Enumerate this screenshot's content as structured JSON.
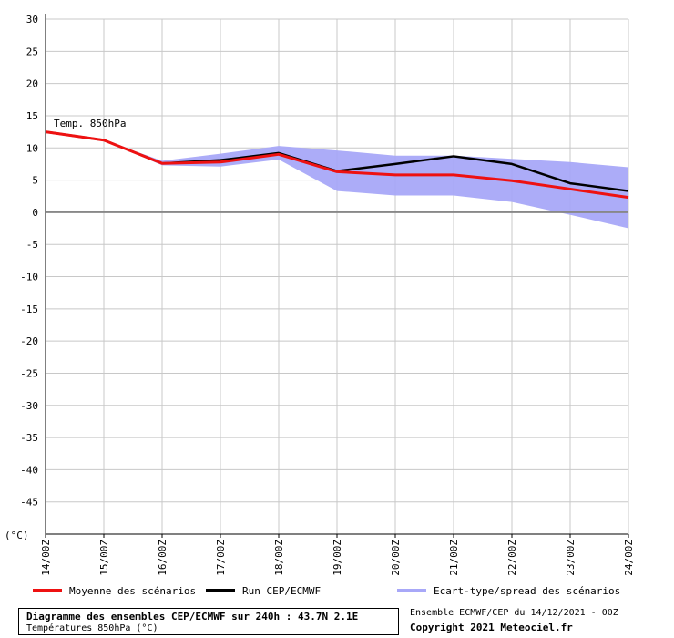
{
  "chart_data": {
    "type": "line",
    "ylabel": "(°C)",
    "ylim": [
      -50,
      30
    ],
    "yticks": [
      30,
      25,
      20,
      15,
      10,
      5,
      0,
      -5,
      -10,
      -15,
      -20,
      -25,
      -30,
      -35,
      -40,
      -45
    ],
    "grid": true,
    "x": [
      "14/00Z",
      "15/00Z",
      "16/00Z",
      "17/00Z",
      "18/00Z",
      "19/00Z",
      "20/00Z",
      "21/00Z",
      "22/00Z",
      "23/00Z",
      "24/00Z"
    ],
    "annotation": "Temp. 850hPa",
    "series": [
      {
        "name": "Moyenne des scénarios",
        "color": "#ee1111",
        "values": [
          12.5,
          11.2,
          7.6,
          7.8,
          9.0,
          6.3,
          5.8,
          5.8,
          4.9,
          3.6,
          2.3
        ]
      },
      {
        "name": "Run CEP/ECMWF",
        "color": "#000000",
        "values": [
          12.5,
          11.2,
          7.6,
          8.1,
          9.2,
          6.4,
          7.5,
          8.7,
          7.5,
          4.5,
          3.3
        ]
      },
      {
        "name": "Ecart-type/spread des scénarios",
        "color": "#a8a8f8",
        "kind": "band",
        "upper": [
          12.5,
          11.2,
          8.0,
          9.1,
          10.3,
          9.6,
          8.8,
          8.8,
          8.3,
          7.8,
          7.0
        ],
        "lower": [
          12.5,
          11.2,
          7.3,
          7.1,
          8.2,
          3.3,
          2.6,
          2.6,
          1.6,
          -0.4,
          -2.5
        ]
      }
    ]
  },
  "legend": {
    "mean": "Moyenne des scénarios",
    "run": "Run CEP/ECMWF",
    "spread": "Ecart-type/spread des scénarios"
  },
  "footer": {
    "title": "Diagramme des ensembles CEP/ECMWF sur 240h : 43.7N 2.1E",
    "subtitle": "Températures 850hPa (°C)",
    "ensemble": "Ensemble ECMWF/CEP du 14/12/2021 - 00Z",
    "copyright": "Copyright 2021 Meteociel.fr"
  },
  "colors": {
    "mean": "#ee1111",
    "run": "#000000",
    "spread": "#a8a8f8",
    "grid": "#c8c8c8",
    "zero_line": "#888888"
  }
}
